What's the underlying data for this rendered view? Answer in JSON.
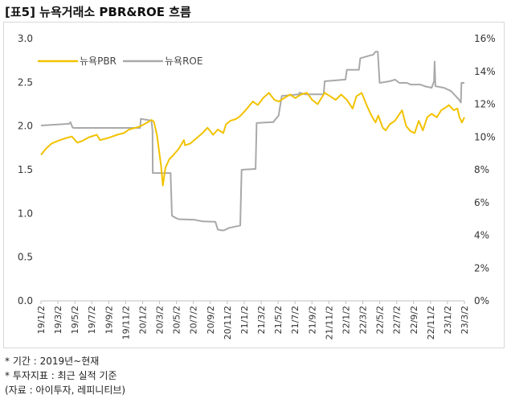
{
  "header": {
    "title": "[표5] 뉴욕거래소 PBR&ROE 흐름"
  },
  "notes": {
    "period": "* 기간 : 2019년~현재",
    "indicator": "* 투자지표 : 최근 실적 기준",
    "source": "(자료 : 아이투자, 레피니티브)"
  },
  "colors": {
    "pbr": "#f2c200",
    "roe": "#a9a9a9",
    "axis": "#bfbfbf"
  },
  "chart_data": {
    "type": "line",
    "title": "",
    "xlabel": "",
    "ylabel": "",
    "ylim": [
      0,
      3.0
    ],
    "y2lim": [
      0,
      16
    ],
    "y_ticks": [
      "0.0",
      "0.5",
      "1.0",
      "1.5",
      "2.0",
      "2.5",
      "3.0"
    ],
    "y2_ticks": [
      "0%",
      "2%",
      "4%",
      "6%",
      "8%",
      "10%",
      "12%",
      "14%",
      "16%"
    ],
    "x_ticks": [
      "19/1/2",
      "19/3/2",
      "19/5/2",
      "19/7/2",
      "19/9/2",
      "19/11/2",
      "20/1/2",
      "20/3/2",
      "20/5/2",
      "20/7/2",
      "20/9/2",
      "20/11/2",
      "21/1/2",
      "21/3/2",
      "21/5/2",
      "21/7/2",
      "21/9/2",
      "21/11/2",
      "22/1/2",
      "22/3/2",
      "22/5/2",
      "22/7/2",
      "22/9/2",
      "22/11/2",
      "23/1/2",
      "23/3/2"
    ],
    "x_range": [
      "2019-01-02",
      "2023-03-31"
    ],
    "legend": {
      "placement": "top-left",
      "entries": [
        "뉴욕PBR",
        "뉴욕ROE"
      ]
    },
    "grid": false,
    "series": [
      {
        "name": "뉴욕PBR",
        "axis": "left",
        "x": [
          "2019-01-02",
          "2019-01-20",
          "2019-02-10",
          "2019-03-05",
          "2019-04-01",
          "2019-04-25",
          "2019-05-15",
          "2019-06-03",
          "2019-06-25",
          "2019-07-25",
          "2019-08-06",
          "2019-09-01",
          "2019-09-20",
          "2019-10-08",
          "2019-11-01",
          "2019-11-20",
          "2019-12-15",
          "2020-01-02",
          "2020-01-20",
          "2020-02-10",
          "2020-02-19",
          "2020-03-01",
          "2020-03-16",
          "2020-03-23",
          "2020-04-01",
          "2020-04-15",
          "2020-05-01",
          "2020-05-20",
          "2020-06-08",
          "2020-06-12",
          "2020-07-01",
          "2020-07-20",
          "2020-08-15",
          "2020-09-02",
          "2020-09-23",
          "2020-10-10",
          "2020-10-30",
          "2020-11-09",
          "2020-11-25",
          "2020-12-15",
          "2021-01-02",
          "2021-01-25",
          "2021-02-15",
          "2021-03-05",
          "2021-03-25",
          "2021-04-15",
          "2021-05-05",
          "2021-05-20",
          "2021-06-10",
          "2021-07-01",
          "2021-07-20",
          "2021-08-10",
          "2021-09-01",
          "2021-09-20",
          "2021-10-10",
          "2021-11-05",
          "2021-11-25",
          "2021-12-15",
          "2022-01-04",
          "2022-01-25",
          "2022-02-15",
          "2022-03-01",
          "2022-03-20",
          "2022-04-10",
          "2022-04-25",
          "2022-05-10",
          "2022-05-20",
          "2022-06-05",
          "2022-06-16",
          "2022-07-01",
          "2022-07-20",
          "2022-08-15",
          "2022-08-30",
          "2022-09-15",
          "2022-09-30",
          "2022-10-15",
          "2022-10-30",
          "2022-11-15",
          "2022-12-01",
          "2022-12-20",
          "2023-01-05",
          "2023-01-25",
          "2023-02-02",
          "2023-02-20",
          "2023-03-05",
          "2023-03-13",
          "2023-03-22",
          "2023-03-31"
        ],
        "values": [
          1.67,
          1.74,
          1.8,
          1.83,
          1.86,
          1.88,
          1.81,
          1.83,
          1.87,
          1.9,
          1.84,
          1.86,
          1.88,
          1.9,
          1.92,
          1.96,
          1.98,
          2.0,
          2.03,
          2.07,
          2.05,
          1.9,
          1.55,
          1.32,
          1.52,
          1.62,
          1.67,
          1.74,
          1.84,
          1.78,
          1.8,
          1.85,
          1.92,
          1.98,
          1.9,
          1.96,
          1.92,
          2.02,
          2.06,
          2.08,
          2.12,
          2.2,
          2.28,
          2.24,
          2.32,
          2.38,
          2.3,
          2.28,
          2.32,
          2.36,
          2.32,
          2.36,
          2.38,
          2.3,
          2.25,
          2.38,
          2.34,
          2.3,
          2.36,
          2.3,
          2.2,
          2.34,
          2.38,
          2.22,
          2.12,
          2.04,
          2.12,
          1.98,
          1.95,
          2.02,
          2.06,
          2.18,
          2.0,
          1.94,
          1.92,
          2.06,
          1.95,
          2.1,
          2.14,
          2.1,
          2.18,
          2.22,
          2.24,
          2.18,
          2.2,
          2.1,
          2.04,
          2.1
        ]
      },
      {
        "name": "뉴욕ROE",
        "axis": "right",
        "x": [
          "2019-01-02",
          "2019-04-15",
          "2019-04-20",
          "2019-04-27",
          "2019-05-01",
          "2019-12-31",
          "2020-01-02",
          "2020-02-10",
          "2020-02-14",
          "2020-02-15",
          "2020-04-20",
          "2020-04-25",
          "2020-05-10",
          "2020-05-20",
          "2020-07-15",
          "2020-08-15",
          "2020-10-01",
          "2020-10-10",
          "2020-10-25",
          "2020-11-01",
          "2020-11-20",
          "2020-12-31",
          "2021-01-05",
          "2021-02-25",
          "2021-03-01",
          "2021-04-25",
          "2021-05-01",
          "2021-05-05",
          "2021-05-20",
          "2021-06-01",
          "2021-08-03",
          "2021-08-05",
          "2021-08-25",
          "2021-11-01",
          "2021-11-05",
          "2022-01-20",
          "2022-01-25",
          "2022-03-10",
          "2022-03-15",
          "2022-04-25",
          "2022-04-30",
          "2022-05-10",
          "2022-05-18",
          "2022-05-25",
          "2022-07-01",
          "2022-07-20",
          "2022-08-05",
          "2022-09-01",
          "2022-09-15",
          "2022-10-20",
          "2022-11-05",
          "2022-12-01",
          "2022-12-10",
          "2022-12-12",
          "2022-12-15",
          "2023-01-15",
          "2023-02-10",
          "2023-03-10",
          "2023-03-18",
          "2023-03-20",
          "2023-03-31"
        ],
        "values": [
          10.7,
          10.8,
          10.9,
          10.6,
          10.55,
          10.55,
          11.1,
          11.0,
          10.4,
          7.8,
          7.8,
          5.2,
          5.05,
          4.98,
          4.95,
          4.85,
          4.82,
          4.35,
          4.3,
          4.3,
          4.45,
          4.6,
          8.0,
          8.05,
          10.85,
          10.9,
          10.9,
          11.0,
          11.3,
          12.5,
          12.6,
          12.7,
          12.6,
          12.6,
          13.4,
          13.5,
          14.1,
          14.1,
          14.8,
          15.0,
          15.0,
          15.2,
          15.2,
          13.3,
          13.4,
          13.5,
          13.3,
          13.3,
          13.2,
          13.2,
          13.1,
          13.0,
          13.4,
          14.6,
          13.1,
          13.0,
          12.8,
          12.3,
          12.1,
          13.3,
          13.3
        ]
      }
    ]
  }
}
